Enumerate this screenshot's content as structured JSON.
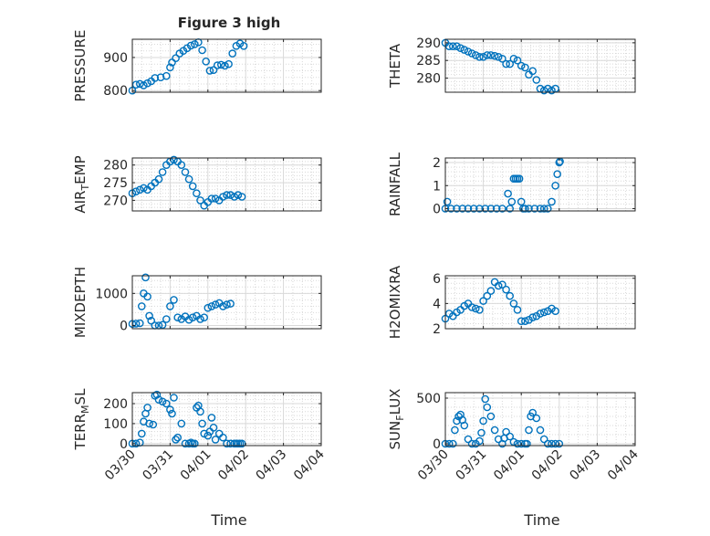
{
  "figure": {
    "title": "Figure 3 high",
    "xlabel": "Time",
    "date_ticks": [
      "03/30",
      "03/31",
      "04/01",
      "04/02",
      "04/03",
      "04/04"
    ],
    "marker_color": "#0072BD",
    "grid_color": "#d9d9d9"
  },
  "chart_data": [
    {
      "type": "scatter",
      "marker": "circle",
      "ylabel": "PRESSURE",
      "subscript": "",
      "xlim": [
        "03/30",
        "04/04"
      ],
      "ylim": [
        795,
        955
      ],
      "yticks": [
        800,
        900
      ],
      "series": [
        {
          "x": [
            0.0,
            0.1,
            0.2,
            0.3,
            0.4,
            0.5,
            0.6,
            0.75,
            0.9,
            1.0,
            1.05,
            1.15,
            1.25,
            1.35,
            1.45,
            1.55,
            1.65,
            1.75,
            1.85,
            1.95,
            2.05,
            2.15,
            2.25,
            2.35,
            2.45,
            2.55,
            2.65,
            2.75,
            2.85,
            2.95
          ],
          "y": [
            800,
            818,
            820,
            816,
            822,
            828,
            838,
            840,
            844,
            870,
            885,
            898,
            912,
            920,
            928,
            936,
            940,
            946,
            922,
            888,
            860,
            862,
            876,
            878,
            875,
            880,
            912,
            935,
            942,
            935
          ]
        }
      ]
    },
    {
      "type": "scatter",
      "marker": "circle",
      "ylabel": "THETA",
      "subscript": "",
      "xlim": [
        "03/30",
        "04/04"
      ],
      "ylim": [
        276,
        291
      ],
      "yticks": [
        280,
        285,
        290
      ],
      "series": [
        {
          "x": [
            0.0,
            0.1,
            0.2,
            0.3,
            0.4,
            0.5,
            0.6,
            0.7,
            0.8,
            0.9,
            1.0,
            1.1,
            1.2,
            1.3,
            1.4,
            1.5,
            1.6,
            1.7,
            1.8,
            1.9,
            2.0,
            2.1,
            2.2,
            2.3,
            2.4,
            2.5,
            2.6,
            2.7,
            2.8,
            2.9
          ],
          "y": [
            290.0,
            289.0,
            289.0,
            289.0,
            288.5,
            288.0,
            287.5,
            287.0,
            286.5,
            286.0,
            286.0,
            286.5,
            286.5,
            286.3,
            286.0,
            285.5,
            284.0,
            284.0,
            285.5,
            285.0,
            283.5,
            283.0,
            281.0,
            282.0,
            279.5,
            277.0,
            276.5,
            277.0,
            276.5,
            277.0
          ]
        }
      ]
    },
    {
      "type": "scatter",
      "marker": "circle",
      "ylabel": "AIR",
      "subscript": "T",
      "ylabel_suffix": "EMP",
      "xlim": [
        "03/30",
        "04/04"
      ],
      "ylim": [
        267,
        282
      ],
      "yticks": [
        270,
        275,
        280
      ],
      "series": [
        {
          "x": [
            0.0,
            0.1,
            0.2,
            0.3,
            0.4,
            0.5,
            0.6,
            0.7,
            0.8,
            0.9,
            1.0,
            1.1,
            1.2,
            1.3,
            1.4,
            1.5,
            1.6,
            1.7,
            1.8,
            1.9,
            2.0,
            2.1,
            2.2,
            2.3,
            2.4,
            2.5,
            2.6,
            2.7,
            2.8,
            2.9
          ],
          "y": [
            272.0,
            272.5,
            273.0,
            273.5,
            273.0,
            274.0,
            275.0,
            276.0,
            278.0,
            280.0,
            281.0,
            281.5,
            281.0,
            280.0,
            278.0,
            276.0,
            274.0,
            272.0,
            270.0,
            268.5,
            269.5,
            270.5,
            270.5,
            270.0,
            271.0,
            271.5,
            271.5,
            271.0,
            271.5,
            271.0
          ]
        }
      ]
    },
    {
      "type": "scatter",
      "marker": "circle",
      "ylabel": "RAINFALL",
      "subscript": "",
      "xlim": [
        "03/30",
        "04/04"
      ],
      "ylim": [
        -0.1,
        2.2
      ],
      "yticks": [
        0,
        1,
        2
      ],
      "series": [
        {
          "x": [
            0.0,
            0.05,
            0.15,
            0.3,
            0.45,
            0.6,
            0.75,
            0.9,
            1.05,
            1.2,
            1.35,
            1.5,
            1.65,
            1.7,
            1.75,
            1.8,
            1.85,
            1.9,
            1.95,
            2.0,
            2.05,
            2.1,
            2.2,
            2.35,
            2.5,
            2.6,
            2.7,
            2.8,
            2.9,
            2.95,
            3.0,
            3.02
          ],
          "y": [
            0,
            0.3,
            0,
            0,
            0,
            0,
            0,
            0,
            0,
            0,
            0,
            0,
            0.65,
            0,
            0.3,
            1.3,
            1.3,
            1.3,
            1.3,
            0.3,
            0,
            0,
            0,
            0,
            0,
            0,
            0,
            0.3,
            1.0,
            1.5,
            2.0,
            2.05
          ]
        }
      ]
    },
    {
      "type": "scatter",
      "marker": "circle",
      "ylabel": "MIXDEPTH",
      "subscript": "",
      "xlim": [
        "03/30",
        "04/04"
      ],
      "ylim": [
        -100,
        1550
      ],
      "yticks": [
        0,
        1000
      ],
      "series": [
        {
          "x": [
            0.0,
            0.1,
            0.2,
            0.25,
            0.3,
            0.35,
            0.4,
            0.45,
            0.5,
            0.6,
            0.7,
            0.8,
            0.9,
            1.0,
            1.1,
            1.2,
            1.3,
            1.4,
            1.5,
            1.6,
            1.7,
            1.8,
            1.9,
            2.0,
            2.1,
            2.2,
            2.3,
            2.4,
            2.5,
            2.6
          ],
          "y": [
            50,
            60,
            70,
            600,
            1000,
            1500,
            900,
            300,
            150,
            0,
            0,
            20,
            200,
            600,
            800,
            250,
            200,
            280,
            180,
            250,
            300,
            200,
            250,
            550,
            600,
            650,
            700,
            600,
            650,
            680
          ]
        }
      ]
    },
    {
      "type": "scatter",
      "marker": "circle",
      "ylabel": "H2OMIXRA",
      "subscript": "",
      "xlim": [
        "03/30",
        "04/04"
      ],
      "ylim": [
        2,
        6.2
      ],
      "yticks": [
        2,
        4,
        6
      ],
      "series": [
        {
          "x": [
            0.0,
            0.1,
            0.2,
            0.3,
            0.4,
            0.5,
            0.6,
            0.7,
            0.8,
            0.9,
            1.0,
            1.1,
            1.2,
            1.3,
            1.4,
            1.5,
            1.6,
            1.7,
            1.8,
            1.9,
            2.0,
            2.1,
            2.2,
            2.3,
            2.4,
            2.5,
            2.6,
            2.7,
            2.8,
            2.9
          ],
          "y": [
            2.8,
            3.2,
            3.0,
            3.3,
            3.5,
            3.8,
            4.0,
            3.7,
            3.6,
            3.5,
            4.2,
            4.6,
            5.0,
            5.7,
            5.4,
            5.5,
            5.1,
            4.6,
            4.0,
            3.5,
            2.6,
            2.6,
            2.7,
            2.9,
            3.0,
            3.2,
            3.3,
            3.4,
            3.6,
            3.4
          ]
        }
      ]
    },
    {
      "type": "scatter",
      "marker": "circle",
      "ylabel": "TERR",
      "subscript": "M",
      "ylabel_suffix": "SL",
      "xlim": [
        "03/30",
        "04/04"
      ],
      "ylim": [
        -10,
        255
      ],
      "yticks": [
        0,
        100,
        200
      ],
      "series": [
        {
          "x": [
            0.0,
            0.1,
            0.2,
            0.25,
            0.3,
            0.35,
            0.4,
            0.45,
            0.55,
            0.6,
            0.65,
            0.7,
            0.8,
            0.9,
            1.0,
            1.05,
            1.1,
            1.15,
            1.2,
            1.3,
            1.4,
            1.5,
            1.55,
            1.6,
            1.65,
            1.7,
            1.75,
            1.8,
            1.85,
            1.9,
            2.0,
            2.05,
            2.1,
            2.15,
            2.2,
            2.3,
            2.4,
            2.5,
            2.6,
            2.7,
            2.75,
            2.8,
            2.85,
            2.9
          ],
          "y": [
            0,
            0,
            5,
            50,
            110,
            150,
            180,
            100,
            95,
            240,
            245,
            220,
            210,
            200,
            170,
            150,
            230,
            20,
            30,
            100,
            0,
            0,
            5,
            0,
            0,
            180,
            190,
            160,
            100,
            50,
            40,
            60,
            130,
            80,
            20,
            50,
            30,
            0,
            0,
            0,
            0,
            0,
            0,
            0
          ]
        }
      ]
    },
    {
      "type": "scatter",
      "marker": "circle",
      "ylabel": "SUN",
      "subscript": "F",
      "ylabel_suffix": "LUX",
      "xlim": [
        "03/30",
        "04/04"
      ],
      "ylim": [
        -20,
        560
      ],
      "yticks": [
        0,
        500
      ],
      "series": [
        {
          "x": [
            0.0,
            0.1,
            0.2,
            0.25,
            0.3,
            0.35,
            0.4,
            0.45,
            0.5,
            0.6,
            0.7,
            0.8,
            0.9,
            0.95,
            1.0,
            1.05,
            1.1,
            1.2,
            1.3,
            1.4,
            1.5,
            1.55,
            1.6,
            1.7,
            1.8,
            1.9,
            2.0,
            2.1,
            2.15,
            2.2,
            2.25,
            2.3,
            2.4,
            2.5,
            2.6,
            2.7,
            2.8,
            2.9,
            3.0
          ],
          "y": [
            0,
            0,
            0,
            150,
            250,
            300,
            320,
            260,
            200,
            50,
            0,
            0,
            30,
            120,
            250,
            490,
            400,
            300,
            150,
            50,
            0,
            60,
            130,
            80,
            20,
            0,
            0,
            0,
            0,
            150,
            300,
            340,
            280,
            150,
            50,
            0,
            0,
            0,
            0
          ]
        }
      ]
    }
  ]
}
